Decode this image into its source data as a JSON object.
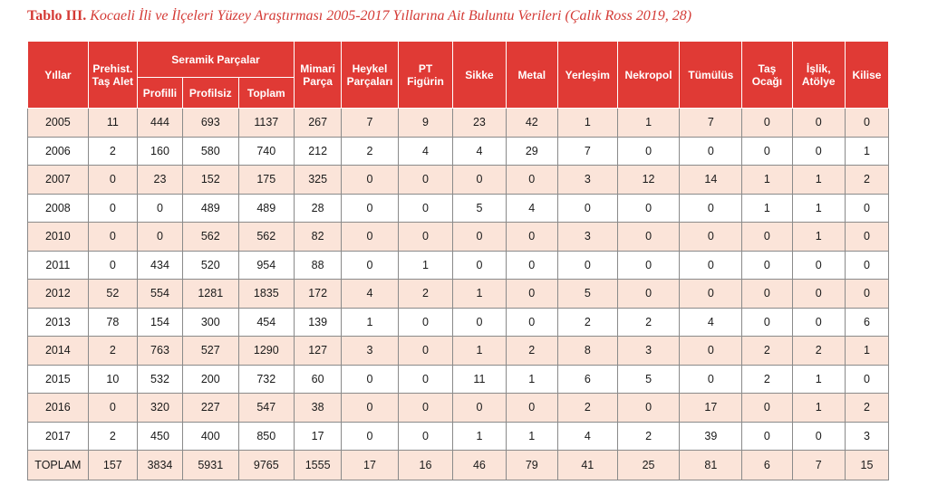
{
  "caption": {
    "lead": "Tablo III.",
    "rest": "Kocaeli İli ve İlçeleri Yüzey Araştırması  2005-2017 Yıllarına Ait Buluntu Verileri (Çalık Ross 2019, 28)"
  },
  "header": {
    "yillar": "Yıllar",
    "prehist": "Prehist. Taş Alet",
    "seramik": "Seramik Parçalar",
    "profilli": "Profilli",
    "profilsiz": "Profilsiz",
    "toplam": "Toplam",
    "mimari": "Mimari Parça",
    "heykel": "Heykel Parçaları",
    "pt": "PT Figürin",
    "sikke": "Sikke",
    "metal": "Metal",
    "yerlesim": "Yerleşim",
    "nekropol": "Nekropol",
    "tumulus": "Tümülüs",
    "tas_ocagi": "Taş Ocağı",
    "islik": "İşlik, Atölye",
    "kilise": "Kilise"
  },
  "rows": [
    {
      "cells": [
        "2005",
        "11",
        "444",
        "693",
        "1137",
        "267",
        "7",
        "9",
        "23",
        "42",
        "1",
        "1",
        "7",
        "0",
        "0",
        "0"
      ]
    },
    {
      "cells": [
        "2006",
        "2",
        "160",
        "580",
        "740",
        "212",
        "2",
        "4",
        "4",
        "29",
        "7",
        "0",
        "0",
        "0",
        "0",
        "1"
      ]
    },
    {
      "cells": [
        "2007",
        "0",
        "23",
        "152",
        "175",
        "325",
        "0",
        "0",
        "0",
        "0",
        "3",
        "12",
        "14",
        "1",
        "1",
        "2"
      ]
    },
    {
      "cells": [
        "2008",
        "0",
        "0",
        "489",
        "489",
        "28",
        "0",
        "0",
        "5",
        "4",
        "0",
        "0",
        "0",
        "1",
        "1",
        "0"
      ]
    },
    {
      "cells": [
        "2010",
        "0",
        "0",
        "562",
        "562",
        "82",
        "0",
        "0",
        "0",
        "0",
        "3",
        "0",
        "0",
        "0",
        "1",
        "0"
      ]
    },
    {
      "cells": [
        "2011",
        "0",
        "434",
        "520",
        "954",
        "88",
        "0",
        "1",
        "0",
        "0",
        "0",
        "0",
        "0",
        "0",
        "0",
        "0"
      ]
    },
    {
      "cells": [
        "2012",
        "52",
        "554",
        "1281",
        "1835",
        "172",
        "4",
        "2",
        "1",
        "0",
        "5",
        "0",
        "0",
        "0",
        "0",
        "0"
      ]
    },
    {
      "cells": [
        "2013",
        "78",
        "154",
        "300",
        "454",
        "139",
        "1",
        "0",
        "0",
        "0",
        "2",
        "2",
        "4",
        "0",
        "0",
        "6"
      ]
    },
    {
      "cells": [
        "2014",
        "2",
        "763",
        "527",
        "1290",
        "127",
        "3",
        "0",
        "1",
        "2",
        "8",
        "3",
        "0",
        "2",
        "2",
        "1"
      ]
    },
    {
      "cells": [
        "2015",
        "10",
        "532",
        "200",
        "732",
        "60",
        "0",
        "0",
        "11",
        "1",
        "6",
        "5",
        "0",
        "2",
        "1",
        "0"
      ]
    },
    {
      "cells": [
        "2016",
        "0",
        "320",
        "227",
        "547",
        "38",
        "0",
        "0",
        "0",
        "0",
        "2",
        "0",
        "17",
        "0",
        "1",
        "2"
      ]
    },
    {
      "cells": [
        "2017",
        "2",
        "450",
        "400",
        "850",
        "17",
        "0",
        "0",
        "1",
        "1",
        "4",
        "2",
        "39",
        "0",
        "0",
        "3"
      ]
    },
    {
      "cells": [
        "TOPLAM",
        "157",
        "3834",
        "5931",
        "9765",
        "1555",
        "17",
        "16",
        "46",
        "79",
        "41",
        "25",
        "81",
        "6",
        "7",
        "15"
      ]
    }
  ],
  "colors": {
    "header_bg": "#e03a35",
    "caption": "#d43a35",
    "alt_row": "#fbe4d9"
  }
}
